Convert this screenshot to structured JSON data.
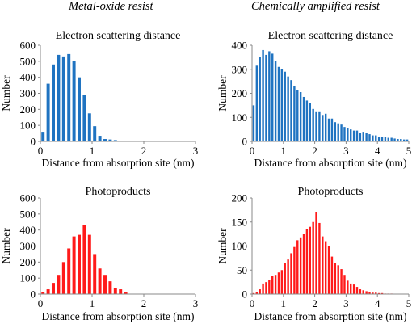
{
  "headers": {
    "left": "Metal-oxide resist",
    "right": "Chemically amplified resist"
  },
  "colors": {
    "electron_bars": "#1f73c1",
    "photoproduct_bars": "#ff1a1a",
    "axis": "#888888"
  },
  "chart_data": [
    {
      "id": "mo-electron",
      "type": "bar",
      "title": "Electron scattering distance",
      "xlabel": "Distance from absorption site (nm)",
      "ylabel": "Number",
      "xlim": [
        0,
        3
      ],
      "ylim": [
        0,
        600
      ],
      "xticks": [
        0,
        1,
        2,
        3
      ],
      "yticks": [
        0,
        100,
        200,
        300,
        400,
        500,
        600
      ],
      "bin_width": 0.1,
      "x": [
        0.05,
        0.15,
        0.25,
        0.35,
        0.45,
        0.55,
        0.65,
        0.75,
        0.85,
        0.95,
        1.05,
        1.15,
        1.25,
        1.35,
        1.45,
        1.55,
        1.65
      ],
      "values": [
        60,
        360,
        480,
        540,
        530,
        545,
        500,
        400,
        290,
        175,
        95,
        35,
        15,
        12,
        8,
        5,
        2
      ],
      "color": "#1f73c1",
      "grid": false
    },
    {
      "id": "ca-electron",
      "type": "bar",
      "title": "Electron scattering distance",
      "xlabel": "Distance from absorption site (nm)",
      "ylabel": "Number",
      "xlim": [
        0,
        5
      ],
      "ylim": [
        0,
        400
      ],
      "xticks": [
        0,
        1,
        2,
        3,
        4,
        5
      ],
      "yticks": [
        0,
        100,
        200,
        300,
        400
      ],
      "bin_width": 0.1,
      "x": [
        0.05,
        0.15,
        0.25,
        0.35,
        0.45,
        0.55,
        0.65,
        0.75,
        0.85,
        0.95,
        1.05,
        1.15,
        1.25,
        1.35,
        1.45,
        1.55,
        1.65,
        1.75,
        1.85,
        1.95,
        2.05,
        2.15,
        2.25,
        2.35,
        2.45,
        2.55,
        2.65,
        2.75,
        2.85,
        2.95,
        3.05,
        3.15,
        3.25,
        3.35,
        3.45,
        3.55,
        3.65,
        3.75,
        3.85,
        3.95,
        4.05,
        4.15,
        4.25,
        4.35,
        4.45,
        4.55,
        4.65,
        4.75,
        4.85,
        4.95
      ],
      "values": [
        150,
        315,
        350,
        380,
        360,
        375,
        365,
        335,
        310,
        300,
        290,
        270,
        255,
        230,
        215,
        205,
        185,
        170,
        160,
        135,
        125,
        125,
        110,
        115,
        95,
        95,
        80,
        75,
        70,
        60,
        55,
        50,
        45,
        45,
        35,
        40,
        35,
        30,
        25,
        25,
        20,
        20,
        20,
        15,
        15,
        12,
        10,
        10,
        8,
        8
      ],
      "color": "#1f73c1",
      "grid": false
    },
    {
      "id": "mo-photo",
      "type": "bar",
      "title": "Photoproducts",
      "xlabel": "Distance from absorption site (nm)",
      "ylabel": "Number",
      "xlim": [
        0,
        3
      ],
      "ylim": [
        0,
        600
      ],
      "xticks": [
        0,
        1,
        2,
        3
      ],
      "yticks": [
        0,
        100,
        200,
        300,
        400,
        500,
        600
      ],
      "bin_width": 0.1,
      "x": [
        0.05,
        0.15,
        0.25,
        0.35,
        0.45,
        0.55,
        0.65,
        0.75,
        0.85,
        0.95,
        1.05,
        1.15,
        1.25,
        1.35,
        1.45,
        1.55,
        1.65
      ],
      "values": [
        12,
        30,
        70,
        120,
        200,
        285,
        360,
        370,
        430,
        370,
        250,
        160,
        120,
        80,
        40,
        30,
        10
      ],
      "color": "#ff1a1a",
      "grid": false
    },
    {
      "id": "ca-photo",
      "type": "bar",
      "title": "Photoproducts",
      "xlabel": "Distance from absorption site (nm)",
      "ylabel": "Number",
      "xlim": [
        0,
        5
      ],
      "ylim": [
        0,
        200
      ],
      "xticks": [
        0,
        1,
        2,
        3,
        4,
        5
      ],
      "yticks": [
        0,
        50,
        100,
        150,
        200
      ],
      "bin_width": 0.1,
      "x": [
        0.05,
        0.15,
        0.25,
        0.35,
        0.45,
        0.55,
        0.65,
        0.75,
        0.85,
        0.95,
        1.05,
        1.15,
        1.25,
        1.35,
        1.45,
        1.55,
        1.65,
        1.75,
        1.85,
        1.95,
        2.05,
        2.15,
        2.25,
        2.35,
        2.45,
        2.55,
        2.65,
        2.75,
        2.85,
        2.95,
        3.05,
        3.15,
        3.25,
        3.35,
        3.45,
        3.55,
        3.65,
        3.75,
        3.85,
        3.95,
        4.05,
        4.15,
        4.25,
        4.35,
        4.45,
        4.55,
        4.65
      ],
      "values": [
        2,
        5,
        10,
        22,
        25,
        30,
        38,
        40,
        45,
        50,
        65,
        72,
        85,
        98,
        112,
        118,
        125,
        135,
        140,
        150,
        170,
        148,
        120,
        110,
        100,
        78,
        65,
        60,
        52,
        40,
        28,
        22,
        20,
        15,
        10,
        8,
        6,
        5,
        3,
        3,
        2,
        2,
        1,
        1,
        1,
        0,
        0
      ],
      "color": "#ff1a1a",
      "grid": false
    }
  ]
}
